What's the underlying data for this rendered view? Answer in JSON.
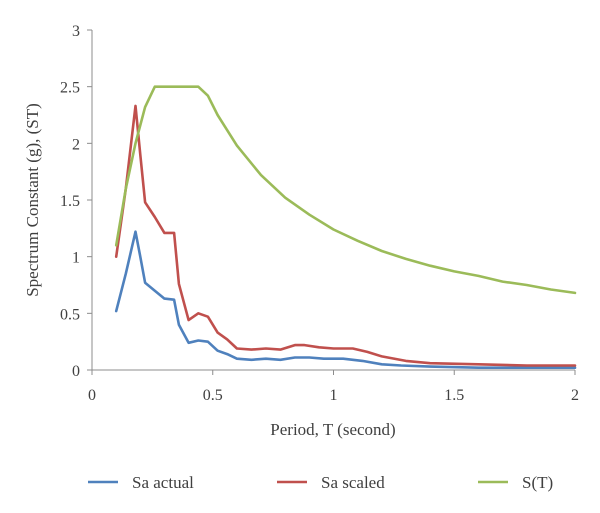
{
  "chart_data": {
    "type": "line",
    "title": "",
    "xlabel": "Period, T (second)",
    "ylabel": "Spectrum Constant (g), (ST)",
    "xlim": [
      0,
      2
    ],
    "ylim": [
      0,
      3
    ],
    "xticks": [
      0,
      0.5,
      1,
      1.5,
      2
    ],
    "xtick_labels": [
      "0",
      "0.5",
      "1",
      "1.5",
      "2"
    ],
    "yticks": [
      0,
      0.5,
      1,
      1.5,
      2,
      2.5,
      3
    ],
    "ytick_labels": [
      "0",
      "0.5",
      "1",
      "1.5",
      "2",
      "2.5",
      "3"
    ],
    "grid": false,
    "legend_position": "bottom",
    "series": [
      {
        "name": "Sa actual",
        "color": "#4f81bd",
        "points": [
          [
            0.1,
            0.52
          ],
          [
            0.14,
            0.85
          ],
          [
            0.18,
            1.22
          ],
          [
            0.2,
            1.0
          ],
          [
            0.22,
            0.77
          ],
          [
            0.26,
            0.7
          ],
          [
            0.3,
            0.63
          ],
          [
            0.34,
            0.62
          ],
          [
            0.36,
            0.4
          ],
          [
            0.4,
            0.24
          ],
          [
            0.44,
            0.26
          ],
          [
            0.48,
            0.25
          ],
          [
            0.52,
            0.17
          ],
          [
            0.56,
            0.14
          ],
          [
            0.6,
            0.1
          ],
          [
            0.66,
            0.09
          ],
          [
            0.72,
            0.1
          ],
          [
            0.78,
            0.09
          ],
          [
            0.84,
            0.11
          ],
          [
            0.9,
            0.11
          ],
          [
            0.96,
            0.1
          ],
          [
            1.04,
            0.1
          ],
          [
            1.12,
            0.08
          ],
          [
            1.2,
            0.05
          ],
          [
            1.28,
            0.04
          ],
          [
            1.4,
            0.03
          ],
          [
            1.6,
            0.02
          ],
          [
            1.8,
            0.02
          ],
          [
            2.0,
            0.02
          ]
        ]
      },
      {
        "name": "Sa scaled",
        "color": "#c0504d",
        "points": [
          [
            0.1,
            1.0
          ],
          [
            0.14,
            1.6
          ],
          [
            0.18,
            2.33
          ],
          [
            0.2,
            1.9
          ],
          [
            0.22,
            1.48
          ],
          [
            0.26,
            1.35
          ],
          [
            0.3,
            1.21
          ],
          [
            0.34,
            1.21
          ],
          [
            0.36,
            0.76
          ],
          [
            0.4,
            0.44
          ],
          [
            0.44,
            0.5
          ],
          [
            0.48,
            0.47
          ],
          [
            0.52,
            0.33
          ],
          [
            0.56,
            0.27
          ],
          [
            0.6,
            0.19
          ],
          [
            0.66,
            0.18
          ],
          [
            0.72,
            0.19
          ],
          [
            0.78,
            0.18
          ],
          [
            0.84,
            0.22
          ],
          [
            0.88,
            0.22
          ],
          [
            0.94,
            0.2
          ],
          [
            1.0,
            0.19
          ],
          [
            1.08,
            0.19
          ],
          [
            1.14,
            0.16
          ],
          [
            1.2,
            0.12
          ],
          [
            1.3,
            0.08
          ],
          [
            1.4,
            0.06
          ],
          [
            1.6,
            0.05
          ],
          [
            1.8,
            0.04
          ],
          [
            2.0,
            0.04
          ]
        ]
      },
      {
        "name": "S(T)",
        "color": "#9bbb59",
        "points": [
          [
            0.1,
            1.1
          ],
          [
            0.14,
            1.6
          ],
          [
            0.18,
            2.0
          ],
          [
            0.22,
            2.32
          ],
          [
            0.26,
            2.5
          ],
          [
            0.3,
            2.5
          ],
          [
            0.35,
            2.5
          ],
          [
            0.4,
            2.5
          ],
          [
            0.44,
            2.5
          ],
          [
            0.48,
            2.42
          ],
          [
            0.52,
            2.25
          ],
          [
            0.6,
            1.98
          ],
          [
            0.7,
            1.72
          ],
          [
            0.8,
            1.52
          ],
          [
            0.9,
            1.37
          ],
          [
            1.0,
            1.24
          ],
          [
            1.1,
            1.14
          ],
          [
            1.2,
            1.05
          ],
          [
            1.3,
            0.98
          ],
          [
            1.4,
            0.92
          ],
          [
            1.5,
            0.87
          ],
          [
            1.6,
            0.83
          ],
          [
            1.7,
            0.78
          ],
          [
            1.8,
            0.75
          ],
          [
            1.9,
            0.71
          ],
          [
            2.0,
            0.68
          ]
        ]
      }
    ]
  }
}
